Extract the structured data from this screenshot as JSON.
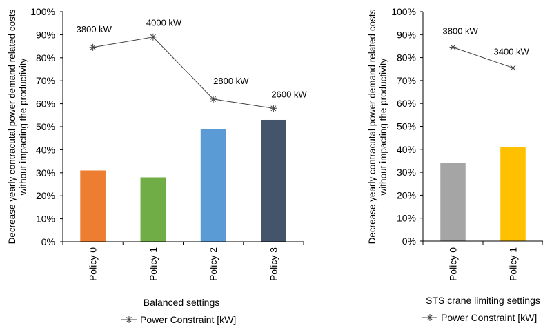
{
  "chart_data": [
    {
      "type": "bar",
      "xlabel": "Balanced settings",
      "ylabel_lines": [
        "Decrease yearly contracutal power demand related costs",
        "without impacting the productivity"
      ],
      "ylim": [
        0,
        100
      ],
      "yticks": [
        "0%",
        "10%",
        "20%",
        "30%",
        "40%",
        "50%",
        "60%",
        "70%",
        "80%",
        "90%",
        "100%"
      ],
      "categories": [
        "Policy 0",
        "Policy 1",
        "Policy 2",
        "Policy 3"
      ],
      "bar_values": [
        31,
        28,
        49,
        53
      ],
      "bar_colors": [
        "#ED7D31",
        "#70AD47",
        "#5B9BD5",
        "#44546A"
      ],
      "line": {
        "name": "Power Constraint [kW]",
        "values": [
          84.5,
          89,
          62,
          58
        ],
        "labels": [
          "3800 kW",
          "4000 kW",
          "2800 kW",
          "2600 kW"
        ]
      },
      "legend": "bottom"
    },
    {
      "type": "bar",
      "xlabel": "STS crane limiting settings",
      "ylabel_lines": [
        "Decrease yearly contracutal power demand related costs",
        "without impacting the productivity"
      ],
      "ylim": [
        0,
        100
      ],
      "yticks": [
        "0%",
        "10%",
        "20%",
        "30%",
        "40%",
        "50%",
        "60%",
        "70%",
        "80%",
        "90%",
        "100%"
      ],
      "categories": [
        "Policy 0",
        "Policy 1"
      ],
      "bar_values": [
        34,
        41
      ],
      "bar_colors": [
        "#A5A5A5",
        "#FFC000"
      ],
      "line": {
        "name": "Power Constraint [kW]",
        "values": [
          84.5,
          75.5
        ],
        "labels": [
          "3800 kW",
          "3400 kW"
        ]
      },
      "legend": "bottom"
    }
  ]
}
